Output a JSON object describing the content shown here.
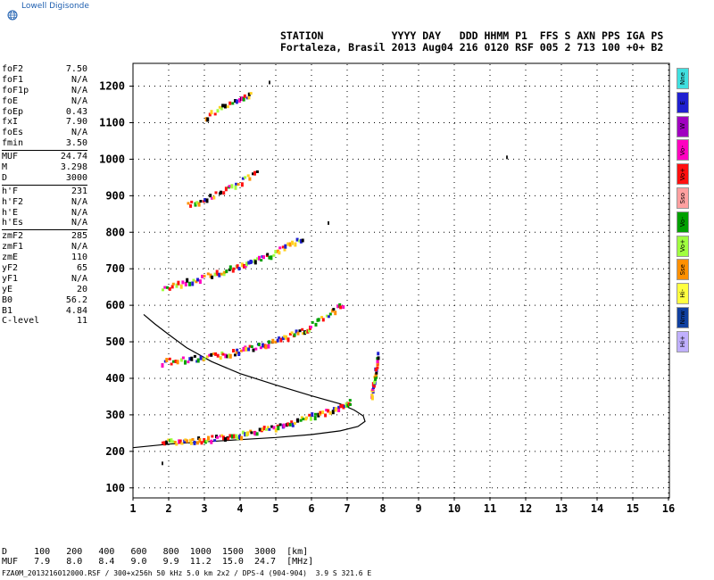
{
  "app": {
    "logo_text": "Lowell Digisonde"
  },
  "header": {
    "line1": "STATION           YYYY DAY   DDD HHMM P1  FFS S AXN PPS IGA PS",
    "line2": "Fortaleza, Brasil 2013 Aug04 216 0120 RSF 005 2 713 100 +0+ B2"
  },
  "params": [
    {
      "label": "foF2",
      "value": "7.50"
    },
    {
      "label": "foF1",
      "value": "N/A"
    },
    {
      "label": "foF1p",
      "value": "N/A"
    },
    {
      "label": "foE",
      "value": "N/A"
    },
    {
      "label": "foEp",
      "value": "0.43"
    },
    {
      "label": "fxI",
      "value": "7.90"
    },
    {
      "label": "foEs",
      "value": "N/A"
    },
    {
      "label": "fmin",
      "value": "3.50"
    },
    {
      "label": "MUF",
      "value": "24.74",
      "sep": true
    },
    {
      "label": "M",
      "value": "3.298"
    },
    {
      "label": "D",
      "value": "3000"
    },
    {
      "label": "h'F",
      "value": "231",
      "sep": true
    },
    {
      "label": "h'F2",
      "value": "N/A"
    },
    {
      "label": "h'E",
      "value": "N/A"
    },
    {
      "label": "h'Es",
      "value": "N/A"
    },
    {
      "label": "zmF2",
      "value": "285",
      "sep": true
    },
    {
      "label": "zmF1",
      "value": "N/A"
    },
    {
      "label": "zmE",
      "value": "110"
    },
    {
      "label": "yF2",
      "value": "65"
    },
    {
      "label": "yF1",
      "value": "N/A"
    },
    {
      "label": "yE",
      "value": "20"
    },
    {
      "label": "B0",
      "value": "56.2"
    },
    {
      "label": "B1",
      "value": "4.84"
    },
    {
      "label": "C-level",
      "value": "11"
    }
  ],
  "legend": [
    {
      "label": "Nne",
      "color": "#40e0e0"
    },
    {
      "label": "E",
      "color": "#2020d0"
    },
    {
      "label": "W",
      "color": "#a000c0"
    },
    {
      "label": "Vo-",
      "color": "#ff00c0"
    },
    {
      "label": "Vo+",
      "color": "#ff1010"
    },
    {
      "label": "Sso",
      "color": "#ffa0a0"
    },
    {
      "label": "Vo-",
      "color": "#00a000"
    },
    {
      "label": "Vo+",
      "color": "#a0ff40"
    },
    {
      "label": "Sse",
      "color": "#ff9000"
    },
    {
      "label": "Hi-",
      "color": "#ffff40"
    },
    {
      "label": "Nnw",
      "color": "#1040a0"
    },
    {
      "label": "Hi+",
      "color": "#c0b0ff"
    }
  ],
  "muf_table": {
    "line1": "D     100   200   400   600   800  1000  1500  3000  [km]",
    "line2": "MUF   7.9   8.0   8.4   9.0   9.9  11.2  15.0  24.7  [MHz]"
  },
  "footer": "FZA0M_2013216012000.RSF / 300+x256h 50 kHz 5.0 km 2x2 / DPS-4 (904-904)  3.9 S 321.6 E",
  "chart_data": {
    "type": "scatter",
    "title": "",
    "xlabel": "",
    "ylabel": "",
    "xlim": [
      1,
      16
    ],
    "ylim": [
      75,
      1260
    ],
    "x_ticks": [
      1,
      2,
      3,
      4,
      5,
      6,
      7,
      8,
      9,
      10,
      11,
      12,
      13,
      14,
      15,
      16
    ],
    "y_ticks": [
      100,
      200,
      300,
      400,
      500,
      600,
      700,
      800,
      900,
      1000,
      1100,
      1200
    ],
    "grid": true,
    "traces": [
      {
        "name": "",
        "points": [
          [
            1.8,
            228
          ],
          [
            2.2,
            230
          ],
          [
            2.6,
            232
          ],
          [
            3.0,
            236
          ],
          [
            3.4,
            240
          ],
          [
            3.8,
            246
          ],
          [
            4.2,
            253
          ],
          [
            4.6,
            262
          ],
          [
            5.0,
            272
          ],
          [
            5.4,
            283
          ],
          [
            5.8,
            294
          ],
          [
            6.2,
            305
          ],
          [
            6.6,
            318
          ],
          [
            6.9,
            330
          ],
          [
            7.1,
            340
          ]
        ]
      },
      {
        "name": "",
        "points": [
          [
            1.8,
            448
          ],
          [
            2.3,
            452
          ],
          [
            2.8,
            458
          ],
          [
            3.3,
            466
          ],
          [
            3.7,
            472
          ],
          [
            4.1,
            482
          ],
          [
            4.5,
            492
          ],
          [
            4.9,
            505
          ],
          [
            5.3,
            518
          ],
          [
            5.7,
            532
          ],
          [
            6.0,
            543
          ]
        ]
      },
      {
        "name": "",
        "points": [
          [
            1.8,
            652
          ],
          [
            2.3,
            662
          ],
          [
            2.8,
            676
          ],
          [
            3.3,
            690
          ],
          [
            3.7,
            702
          ],
          [
            4.1,
            714
          ],
          [
            4.5,
            728
          ],
          [
            4.9,
            745
          ],
          [
            5.3,
            765
          ],
          [
            5.8,
            790
          ]
        ]
      },
      {
        "name": "",
        "points": [
          [
            2.5,
            878
          ],
          [
            3.0,
            895
          ],
          [
            3.5,
            915
          ],
          [
            4.0,
            942
          ],
          [
            4.5,
            972
          ]
        ]
      },
      {
        "name": "",
        "points": [
          [
            3.0,
            1118
          ],
          [
            3.5,
            1145
          ],
          [
            4.0,
            1168
          ],
          [
            4.3,
            1180
          ]
        ]
      },
      {
        "name": "",
        "points": [
          [
            6.0,
            555
          ],
          [
            6.5,
            580
          ],
          [
            6.9,
            610
          ]
        ]
      },
      {
        "name": "",
        "points": [
          [
            7.65,
            350
          ],
          [
            7.7,
            380
          ],
          [
            7.75,
            410
          ],
          [
            7.8,
            440
          ],
          [
            7.85,
            470
          ]
        ]
      }
    ],
    "profile": [
      [
        1.0,
        210
      ],
      [
        2.0,
        220
      ],
      [
        3.0,
        226
      ],
      [
        4.0,
        232
      ],
      [
        5.0,
        238
      ],
      [
        6.0,
        246
      ],
      [
        6.8,
        256
      ],
      [
        7.3,
        268
      ],
      [
        7.5,
        282
      ],
      [
        7.45,
        297
      ],
      [
        7.2,
        313
      ],
      [
        6.8,
        330
      ],
      [
        6.0,
        352
      ],
      [
        5.0,
        382
      ],
      [
        4.0,
        413
      ],
      [
        3.2,
        446
      ],
      [
        2.5,
        484
      ],
      [
        2.0,
        520
      ],
      [
        1.6,
        550
      ],
      [
        1.3,
        575
      ]
    ],
    "stray_points": [
      [
        1.8,
        172
      ],
      [
        6.45,
        830
      ],
      [
        11.45,
        1010
      ],
      [
        4.8,
        1215
      ]
    ]
  }
}
